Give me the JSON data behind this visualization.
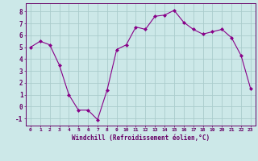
{
  "x": [
    0,
    1,
    2,
    3,
    4,
    5,
    6,
    7,
    8,
    9,
    10,
    11,
    12,
    13,
    14,
    15,
    16,
    17,
    18,
    19,
    20,
    21,
    22,
    23
  ],
  "y": [
    5.0,
    5.5,
    5.2,
    3.5,
    1.0,
    -0.3,
    -0.3,
    -1.1,
    1.4,
    4.8,
    5.2,
    6.7,
    6.5,
    7.6,
    7.7,
    8.1,
    7.1,
    6.5,
    6.1,
    6.3,
    6.5,
    5.8,
    4.3,
    1.5
  ],
  "line_color": "#880088",
  "marker": "D",
  "marker_size": 2,
  "bg_color": "#cce8e8",
  "grid_color": "#aacccc",
  "axis_color": "#660066",
  "tick_color": "#660066",
  "xlabel": "Windchill (Refroidissement éolien,°C)",
  "xlim": [
    -0.5,
    23.5
  ],
  "ylim": [
    -1.6,
    8.7
  ],
  "yticks": [
    -1,
    0,
    1,
    2,
    3,
    4,
    5,
    6,
    7,
    8
  ],
  "xticks": [
    0,
    1,
    2,
    3,
    4,
    5,
    6,
    7,
    8,
    9,
    10,
    11,
    12,
    13,
    14,
    15,
    16,
    17,
    18,
    19,
    20,
    21,
    22,
    23
  ]
}
